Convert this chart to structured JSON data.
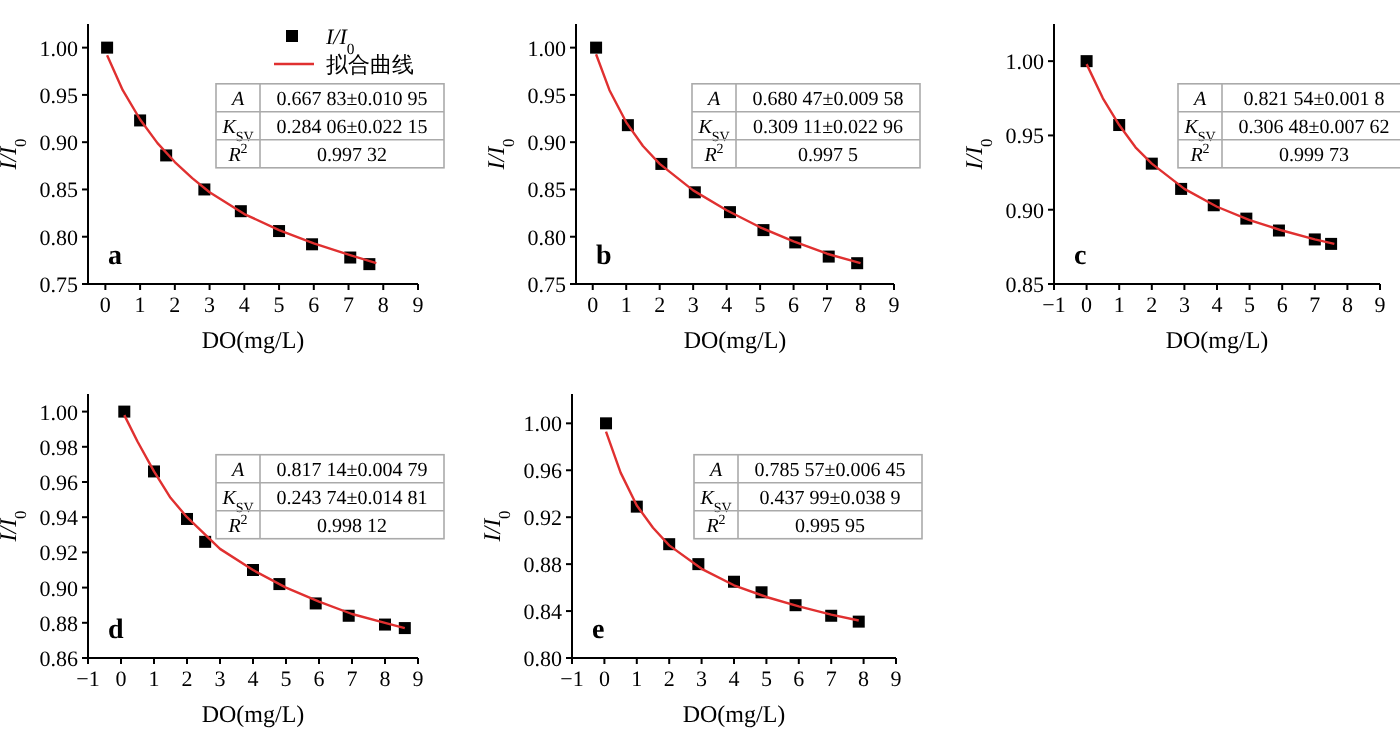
{
  "chart_data": [
    {
      "type": "scatter",
      "xlabel": "DO(mg/L)",
      "ylabel": "I/I$_{0}$",
      "xlim": [
        -0.5,
        9
      ],
      "xticks": [
        0,
        1,
        2,
        3,
        4,
        5,
        6,
        7,
        8,
        9
      ],
      "ylim": [
        0.75,
        1.025
      ],
      "yticks": [
        {
          "value": 0.75,
          "label": "0.75"
        },
        {
          "value": 0.8,
          "label": "0.80"
        },
        {
          "value": 0.85,
          "label": "0.85"
        },
        {
          "value": 0.9,
          "label": "0.90"
        },
        {
          "value": 0.95,
          "label": "0.95"
        },
        {
          "value": 1.0,
          "label": "1.00"
        }
      ],
      "legend": "top right",
      "series": [
        {
          "name": "I/I$_{0}$",
          "type": "scatter",
          "marker": "square",
          "color": "#000000",
          "x": [
            0.05,
            1,
            1.75,
            2.85,
            3.9,
            5,
            5.95,
            7.05,
            7.6
          ],
          "values": [
            1.0,
            0.923,
            0.886,
            0.85,
            0.827,
            0.806,
            0.792,
            0.778,
            0.771
          ]
        },
        {
          "name": "拟合曲线",
          "type": "line",
          "marker": "none",
          "color": "#e03030",
          "x": [
            0.05,
            0.5,
            1,
            1.5,
            2,
            2.5,
            3,
            4,
            5,
            6,
            7,
            7.8
          ],
          "values": [
            0.992,
            0.955,
            0.924,
            0.899,
            0.879,
            0.862,
            0.847,
            0.824,
            0.807,
            0.793,
            0.781,
            0.772
          ]
        }
      ],
      "annotations": [
        "a",
        "A",
        "0.667 83±0.010 95",
        "K$_{SV}$",
        "0.284 06±0.022 15",
        "R$^{2}$",
        "0.997 32"
      ]
    },
    {
      "type": "scatter",
      "xlabel": "DO(mg/L)",
      "ylabel": "I/I$_{0}$",
      "xlim": [
        -0.5,
        9
      ],
      "xticks": [
        0,
        1,
        2,
        3,
        4,
        5,
        6,
        7,
        8,
        9
      ],
      "ylim": [
        0.75,
        1.025
      ],
      "yticks": [
        {
          "value": 0.75,
          "label": "0.75"
        },
        {
          "value": 0.8,
          "label": "0.80"
        },
        {
          "value": 0.85,
          "label": "0.85"
        },
        {
          "value": 0.9,
          "label": "0.90"
        },
        {
          "value": 0.95,
          "label": "0.95"
        },
        {
          "value": 1.0,
          "label": "1.00"
        }
      ],
      "series": [
        {
          "type": "scatter",
          "marker": "square",
          "color": "#000000",
          "x": [
            0.1,
            1.05,
            2.05,
            3.05,
            4.1,
            5.1,
            6.05,
            7.05,
            7.9
          ],
          "values": [
            1.0,
            0.918,
            0.877,
            0.847,
            0.826,
            0.807,
            0.794,
            0.779,
            0.772
          ]
        },
        {
          "type": "line",
          "marker": "none",
          "color": "#e03030",
          "x": [
            0.1,
            0.5,
            1,
            1.5,
            2,
            3,
            4,
            5,
            6,
            7,
            8
          ],
          "values": [
            0.993,
            0.955,
            0.921,
            0.896,
            0.877,
            0.849,
            0.828,
            0.81,
            0.795,
            0.782,
            0.772
          ]
        }
      ],
      "annotations": [
        "b",
        "A",
        "0.680 47±0.009 58",
        "K$_{SV}$",
        "0.309 11±0.022 96",
        "R$^{2}$",
        "0.997 5"
      ]
    },
    {
      "type": "scatter",
      "xlabel": "DO(mg/L)",
      "ylabel": "I/I$_{0}$",
      "xlim": [
        -1,
        9
      ],
      "xticks": [
        -1,
        0,
        1,
        2,
        3,
        4,
        5,
        6,
        7,
        8,
        9
      ],
      "ylim": [
        0.85,
        1.025
      ],
      "yticks": [
        {
          "value": 0.85,
          "label": "0.85"
        },
        {
          "value": 0.9,
          "label": "0.90"
        },
        {
          "value": 0.95,
          "label": "0.95"
        },
        {
          "value": 1.0,
          "label": "1.00"
        }
      ],
      "series": [
        {
          "type": "scatter",
          "marker": "square",
          "color": "#000000",
          "x": [
            0,
            1,
            2,
            2.9,
            3.9,
            4.9,
            5.9,
            7,
            7.5
          ],
          "values": [
            1.0,
            0.957,
            0.931,
            0.914,
            0.903,
            0.894,
            0.886,
            0.88,
            0.877
          ]
        },
        {
          "type": "line",
          "marker": "none",
          "color": "#e03030",
          "x": [
            0,
            0.5,
            1,
            1.5,
            2,
            3,
            4,
            5,
            6,
            7,
            7.6
          ],
          "values": [
            0.998,
            0.975,
            0.957,
            0.942,
            0.931,
            0.914,
            0.902,
            0.893,
            0.886,
            0.88,
            0.877
          ]
        }
      ],
      "annotations": [
        "c",
        "A",
        "0.821 54±0.001 8",
        "K$_{SV}$",
        "0.306 48±0.007 62",
        "R$^{2}$",
        "0.999 73"
      ]
    },
    {
      "type": "scatter",
      "xlabel": "DO(mg/L)",
      "ylabel": "I/I$_{0}$",
      "xlim": [
        -1,
        9
      ],
      "xticks": [
        -1,
        0,
        1,
        2,
        3,
        4,
        5,
        6,
        7,
        8,
        9
      ],
      "ylim": [
        0.86,
        1.01
      ],
      "yticks": [
        {
          "value": 0.86,
          "label": "0.86"
        },
        {
          "value": 0.88,
          "label": "0.88"
        },
        {
          "value": 0.9,
          "label": "0.90"
        },
        {
          "value": 0.92,
          "label": "0.92"
        },
        {
          "value": 0.94,
          "label": "0.94"
        },
        {
          "value": 0.96,
          "label": "0.96"
        },
        {
          "value": 0.98,
          "label": "0.98"
        },
        {
          "value": 1.0,
          "label": "1.00"
        }
      ],
      "series": [
        {
          "type": "scatter",
          "marker": "square",
          "color": "#000000",
          "x": [
            0.1,
            1,
            2,
            2.55,
            4,
            4.8,
            5.9,
            6.9,
            8,
            8.6
          ],
          "values": [
            1.0,
            0.966,
            0.939,
            0.926,
            0.91,
            0.902,
            0.891,
            0.884,
            0.879,
            0.877
          ]
        },
        {
          "type": "line",
          "marker": "none",
          "color": "#e03030",
          "x": [
            0.1,
            0.5,
            1,
            1.5,
            2,
            3,
            4,
            5,
            6,
            7,
            8,
            8.6
          ],
          "values": [
            0.998,
            0.983,
            0.966,
            0.951,
            0.94,
            0.922,
            0.91,
            0.9,
            0.892,
            0.885,
            0.88,
            0.877
          ]
        }
      ],
      "annotations": [
        "d",
        "A",
        "0.817 14±0.004 79",
        "K$_{SV}$",
        "0.243 74±0.014 81",
        "R$^{2}$",
        "0.998 12"
      ]
    },
    {
      "type": "scatter",
      "xlabel": "DO(mg/L)",
      "ylabel": "I/I$_{0}$",
      "xlim": [
        -1,
        9
      ],
      "xticks": [
        -1,
        0,
        1,
        2,
        3,
        4,
        5,
        6,
        7,
        8,
        9
      ],
      "ylim": [
        0.8,
        1.025
      ],
      "yticks": [
        {
          "value": 0.8,
          "label": "0.80"
        },
        {
          "value": 0.84,
          "label": "0.84"
        },
        {
          "value": 0.88,
          "label": "0.88"
        },
        {
          "value": 0.92,
          "label": "0.92"
        },
        {
          "value": 0.96,
          "label": "0.96"
        },
        {
          "value": 1.0,
          "label": "1.00"
        }
      ],
      "series": [
        {
          "type": "scatter",
          "marker": "square",
          "color": "#000000",
          "x": [
            0.05,
            1,
            2,
            2.9,
            4,
            4.85,
            5.9,
            7,
            7.85
          ],
          "values": [
            1.0,
            0.929,
            0.897,
            0.88,
            0.865,
            0.856,
            0.845,
            0.836,
            0.831
          ]
        },
        {
          "type": "line",
          "marker": "none",
          "color": "#e03030",
          "x": [
            0.05,
            0.5,
            1,
            1.5,
            2,
            3,
            4,
            5,
            6,
            7,
            7.85
          ],
          "values": [
            0.993,
            0.958,
            0.93,
            0.911,
            0.896,
            0.876,
            0.862,
            0.852,
            0.844,
            0.837,
            0.832
          ]
        }
      ],
      "annotations": [
        "e",
        "A",
        "0.785 57±0.006 45",
        "K$_{SV}$",
        "0.437 99±0.038 9",
        "R$^{2}$",
        "0.995 95"
      ]
    }
  ]
}
